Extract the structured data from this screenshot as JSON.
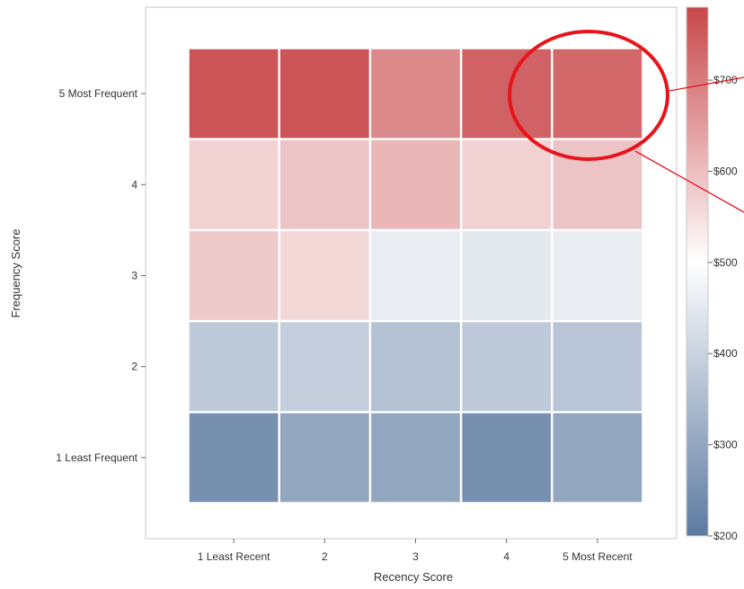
{
  "chart_data": {
    "type": "heatmap",
    "xlabel": "Recency Score",
    "ylabel": "Frequency Score",
    "x_categories": [
      "1 Least Recent",
      "2",
      "3",
      "4",
      "5 Most Recent"
    ],
    "y_categories": [
      "1 Least Frequent",
      "2",
      "3",
      "4",
      "5 Most Frequent"
    ],
    "values": [
      [
        250,
        300,
        300,
        250,
        300
      ],
      [
        380,
        390,
        360,
        380,
        370
      ],
      [
        580,
        560,
        460,
        450,
        460
      ],
      [
        570,
        590,
        610,
        570,
        590
      ],
      [
        760,
        760,
        680,
        740,
        730
      ]
    ],
    "colorbar": {
      "min": 200,
      "max": 780,
      "ticks": [
        "$200",
        "$300",
        "$400",
        "$500",
        "$600",
        "$700"
      ],
      "tick_values": [
        200,
        300,
        400,
        500,
        600,
        700
      ],
      "colors": {
        "low": "#5d7aa0",
        "mid": "#ffffff",
        "high": "#c8474a"
      },
      "mid_value": 500
    },
    "annotation": {
      "shape": "ellipse",
      "color": "#e8141b",
      "highlights": "5 Most Frequent / 5 Most Recent"
    },
    "grid": false
  }
}
